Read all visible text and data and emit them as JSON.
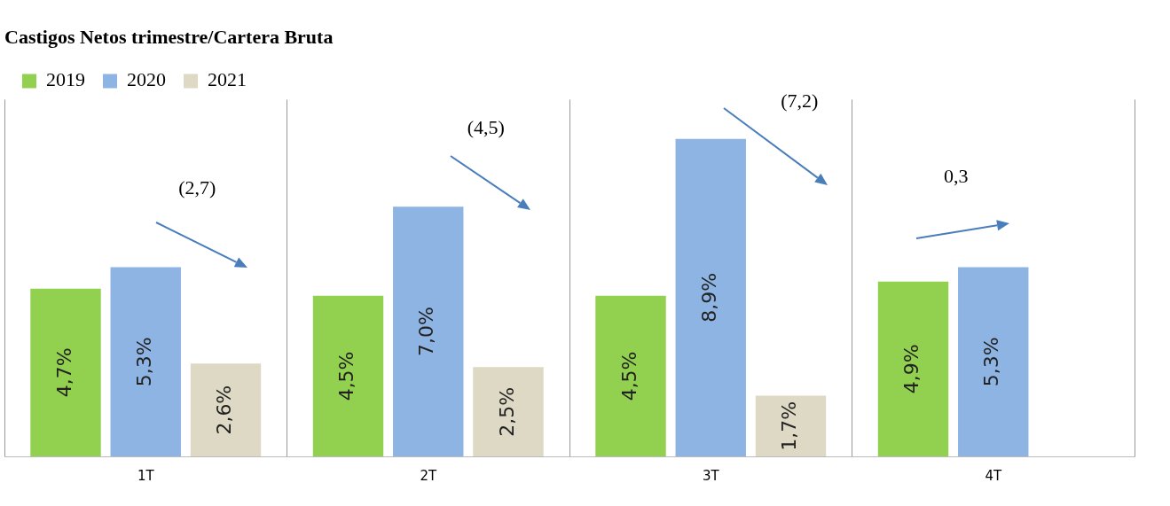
{
  "chart_data": {
    "type": "bar",
    "title": "Castigos Netos trimestre/Cartera Bruta",
    "categories": [
      "1T",
      "2T",
      "3T",
      "4T"
    ],
    "series": [
      {
        "name": "2019",
        "color": "#92d050",
        "values": [
          4.7,
          4.5,
          4.5,
          4.9
        ],
        "value_labels": [
          "4,7%",
          "4,5%",
          "4,5%",
          "4,9%"
        ]
      },
      {
        "name": "2020",
        "color": "#8eb4e3",
        "values": [
          5.3,
          7.0,
          8.9,
          5.3
        ],
        "value_labels": [
          "5,3%",
          "7,0%",
          "8,9%",
          "5,3%"
        ]
      },
      {
        "name": "2021",
        "color": "#ddd9c4",
        "values": [
          2.6,
          2.5,
          1.7,
          null
        ],
        "value_labels": [
          "2,6%",
          "2,5%",
          "1,7%",
          null
        ]
      }
    ],
    "annotations": [
      "(2,7)",
      "(4,5)",
      "(7,2)",
      "0,3"
    ],
    "grid": "x",
    "legend": "top left"
  }
}
